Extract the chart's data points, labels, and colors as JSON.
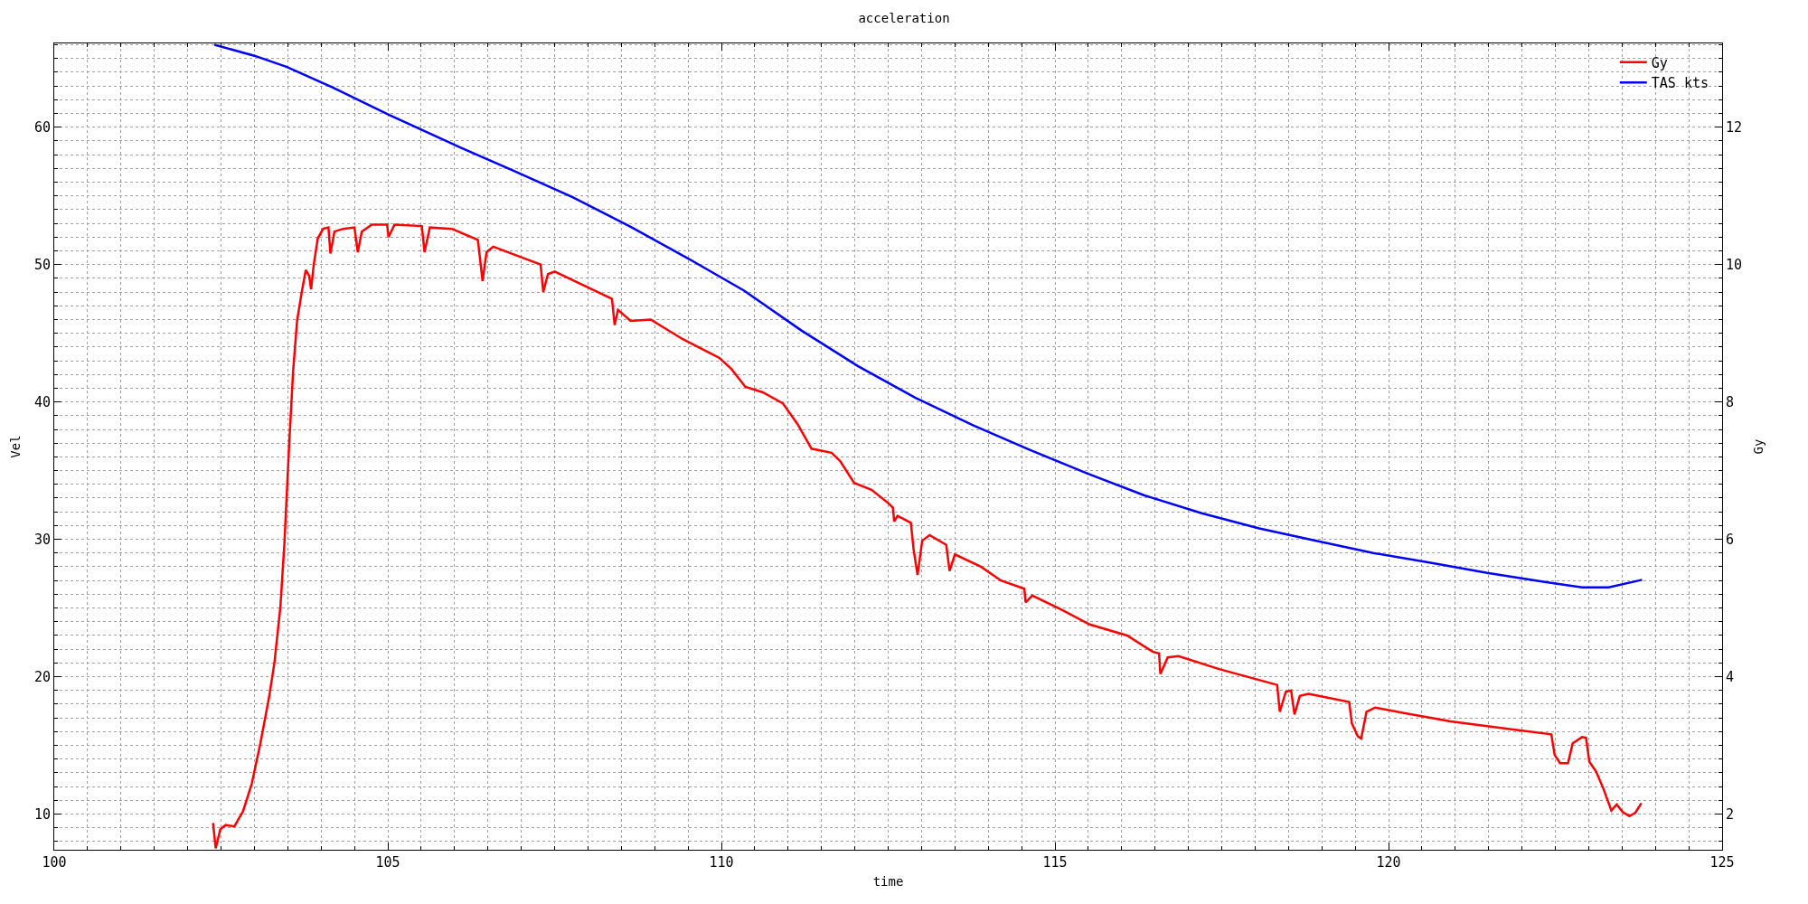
{
  "chart_data": {
    "type": "line",
    "title": "acceleration",
    "xlabel": "time",
    "ylabel": "Vel",
    "y2label": "Gy",
    "xlim": [
      100,
      125
    ],
    "xticks": [
      100,
      105,
      110,
      115,
      120,
      125
    ],
    "ylim": [
      7.4,
      66.1
    ],
    "yticks": [
      10,
      20,
      30,
      40,
      50,
      60
    ],
    "y2lim": [
      1.48,
      13.22
    ],
    "y2ticks": [
      2,
      4,
      6,
      8,
      10,
      12
    ],
    "grid": true,
    "legend": "top right",
    "marker": "none",
    "line_style": "solid",
    "series": [
      {
        "name": "Gy",
        "color": "#ff0000",
        "axis": "y2",
        "x": [
          102.38,
          102.42,
          102.49,
          102.57,
          102.7,
          102.83,
          102.96,
          103.09,
          103.22,
          103.3,
          103.39,
          103.45,
          103.52,
          103.58,
          103.64,
          103.71,
          103.77,
          103.82,
          103.85,
          103.89,
          103.95,
          104.03,
          104.11,
          104.14,
          104.2,
          104.33,
          104.5,
          104.55,
          104.61,
          104.76,
          104.99,
          105.01,
          105.1,
          105.51,
          105.55,
          105.63,
          105.96,
          106.35,
          106.42,
          106.48,
          106.58,
          107.29,
          107.33,
          107.4,
          107.5,
          108.36,
          108.4,
          108.45,
          108.64,
          108.94,
          109.41,
          109.85,
          109.97,
          110.15,
          110.36,
          110.62,
          110.92,
          111.14,
          111.35,
          111.65,
          111.78,
          111.99,
          112.25,
          112.51,
          112.57,
          112.59,
          112.64,
          112.84,
          112.88,
          112.94,
          113.01,
          113.12,
          113.37,
          113.42,
          113.5,
          113.89,
          114.19,
          114.54,
          114.56,
          114.66,
          115.09,
          115.52,
          116.08,
          116.47,
          116.56,
          116.58,
          116.69,
          116.85,
          117.46,
          118.33,
          118.37,
          118.46,
          118.54,
          118.59,
          118.67,
          118.8,
          119.41,
          119.45,
          119.54,
          119.59,
          119.67,
          119.8,
          120.23,
          120.93,
          121.79,
          122.44,
          122.49,
          122.57,
          122.69,
          122.76,
          122.9,
          122.96,
          123.01,
          123.11,
          123.22,
          123.34,
          123.42,
          123.51,
          123.61,
          123.7,
          123.79
        ],
        "values": [
          1.87,
          1.5,
          1.78,
          1.84,
          1.82,
          2.04,
          2.44,
          3.03,
          3.7,
          4.2,
          5.02,
          5.94,
          7.36,
          8.44,
          9.18,
          9.6,
          9.92,
          9.84,
          9.64,
          10.0,
          10.38,
          10.52,
          10.54,
          10.16,
          10.48,
          10.52,
          10.54,
          10.18,
          10.48,
          10.58,
          10.58,
          10.4,
          10.58,
          10.56,
          10.18,
          10.54,
          10.52,
          10.36,
          9.76,
          10.18,
          10.26,
          10.0,
          9.6,
          9.86,
          9.9,
          9.5,
          9.12,
          9.34,
          9.18,
          9.2,
          8.92,
          8.7,
          8.64,
          8.48,
          8.22,
          8.14,
          7.98,
          7.68,
          7.32,
          7.26,
          7.14,
          6.82,
          6.72,
          6.52,
          6.46,
          6.26,
          6.34,
          6.24,
          5.86,
          5.48,
          5.98,
          6.06,
          5.92,
          5.54,
          5.78,
          5.6,
          5.4,
          5.28,
          5.08,
          5.18,
          4.98,
          4.76,
          4.6,
          4.36,
          4.34,
          4.04,
          4.28,
          4.3,
          4.11,
          3.88,
          3.49,
          3.78,
          3.8,
          3.45,
          3.72,
          3.75,
          3.63,
          3.32,
          3.13,
          3.1,
          3.49,
          3.55,
          3.47,
          3.35,
          3.24,
          3.16,
          2.86,
          2.74,
          2.74,
          3.03,
          3.12,
          3.11,
          2.76,
          2.62,
          2.37,
          2.05,
          2.14,
          2.03,
          1.97,
          2.02,
          2.16
        ]
      },
      {
        "name": "TAS kts",
        "color": "#0000ff",
        "axis": "y",
        "x": [
          102.4,
          103.0,
          103.48,
          104.17,
          105.02,
          106.05,
          106.9,
          107.77,
          108.62,
          109.48,
          110.34,
          111.2,
          112.05,
          112.91,
          113.77,
          114.63,
          115.48,
          116.34,
          117.2,
          118.06,
          118.9,
          119.77,
          120.63,
          121.48,
          122.34,
          122.9,
          123.3,
          123.8
        ],
        "values": [
          66.0,
          65.2,
          64.4,
          62.9,
          60.9,
          58.6,
          56.8,
          54.9,
          52.8,
          50.5,
          48.1,
          45.2,
          42.6,
          40.3,
          38.3,
          36.5,
          34.8,
          33.2,
          31.9,
          30.8,
          29.9,
          29.0,
          28.3,
          27.55,
          26.9,
          26.5,
          26.5,
          27.05
        ]
      }
    ]
  }
}
